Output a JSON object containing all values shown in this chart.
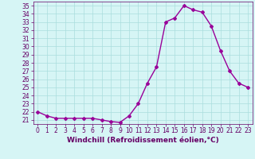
{
  "x": [
    0,
    1,
    2,
    3,
    4,
    5,
    6,
    7,
    8,
    9,
    10,
    11,
    12,
    13,
    14,
    15,
    16,
    17,
    18,
    19,
    20,
    21,
    22,
    23
  ],
  "y": [
    22.0,
    21.5,
    21.2,
    21.2,
    21.2,
    21.2,
    21.2,
    21.0,
    20.8,
    20.7,
    21.5,
    23.0,
    25.5,
    27.5,
    33.0,
    33.5,
    35.0,
    34.5,
    34.2,
    32.5,
    29.5,
    27.0,
    25.5,
    25.0
  ],
  "line_color": "#990099",
  "marker": "D",
  "marker_size": 2,
  "bg_color": "#d6f5f5",
  "grid_color": "#aadddd",
  "xlabel": "Windchill (Refroidissement éolien,°C)",
  "ylim": [
    20.5,
    35.5
  ],
  "xlim": [
    -0.5,
    23.5
  ],
  "yticks": [
    21,
    22,
    23,
    24,
    25,
    26,
    27,
    28,
    29,
    30,
    31,
    32,
    33,
    34,
    35
  ],
  "xticks": [
    0,
    1,
    2,
    3,
    4,
    5,
    6,
    7,
    8,
    9,
    10,
    11,
    12,
    13,
    14,
    15,
    16,
    17,
    18,
    19,
    20,
    21,
    22,
    23
  ],
  "tick_fontsize": 5.5,
  "xlabel_fontsize": 6.5,
  "tick_color": "#660066",
  "spine_color": "#660066",
  "line_width": 1.0
}
